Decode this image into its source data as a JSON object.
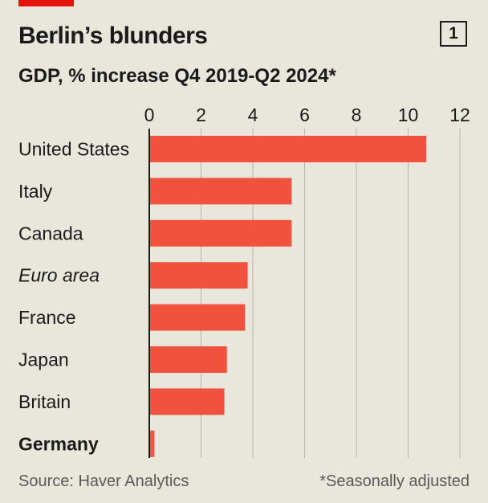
{
  "header": {
    "title": "Berlin’s blunders",
    "chart_number": "1",
    "subtitle": "GDP, % increase Q4 2019-Q2 2024*"
  },
  "footer": {
    "source": "Source: Haver Analytics",
    "note": "*Seasonally adjusted"
  },
  "colors": {
    "background": "#e9e6dc",
    "bar": "#f0523d",
    "accent": "#e3120b",
    "grid": "#b7b3aa"
  },
  "chart_data": {
    "type": "bar",
    "orientation": "horizontal",
    "title": "Berlin’s blunders",
    "subtitle": "GDP, % increase Q4 2019-Q2 2024*",
    "xlabel": "",
    "ylabel": "",
    "xlim": [
      0,
      12
    ],
    "xticks": [
      "0",
      "2",
      "4",
      "6",
      "8",
      "10",
      "12"
    ],
    "grid": true,
    "categories": [
      "United States",
      "Italy",
      "Canada",
      "Euro area",
      "France",
      "Japan",
      "Britain",
      "Germany"
    ],
    "category_styles": [
      "normal",
      "normal",
      "normal",
      "italic",
      "normal",
      "normal",
      "normal",
      "bold"
    ],
    "values": [
      10.7,
      5.5,
      5.5,
      3.8,
      3.7,
      3.0,
      2.9,
      0.2
    ]
  }
}
